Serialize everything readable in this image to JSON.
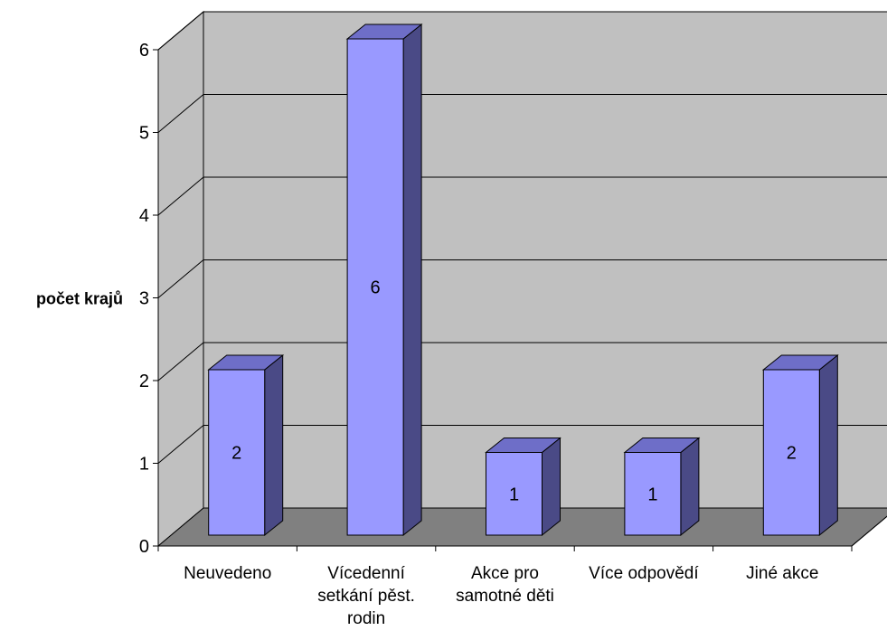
{
  "chart_data": {
    "type": "bar",
    "style": "3d-column",
    "title": "",
    "xlabel": "",
    "ylabel": "počet krajů",
    "categories": [
      [
        "Neuvedeno"
      ],
      [
        "Vícedenní",
        "setkání pěst.",
        "rodin"
      ],
      [
        "Akce pro",
        "samotné děti"
      ],
      [
        "Více odpovědí"
      ],
      [
        "Jiné akce"
      ]
    ],
    "values": [
      2,
      6,
      1,
      1,
      2
    ],
    "data_labels": [
      "2",
      "6",
      "1",
      "1",
      "2"
    ],
    "ylim": [
      0,
      6
    ],
    "yticks": [
      "0",
      "1",
      "2",
      "3",
      "4",
      "5",
      "6"
    ],
    "grid": true,
    "legend": "none",
    "colors": {
      "bar_front": "#9999FF",
      "bar_top": "#6E6EC8",
      "bar_side": "#4A4A86",
      "back_wall": "#C0C0C0",
      "floor": "#808080",
      "gridline": "#000000"
    }
  }
}
